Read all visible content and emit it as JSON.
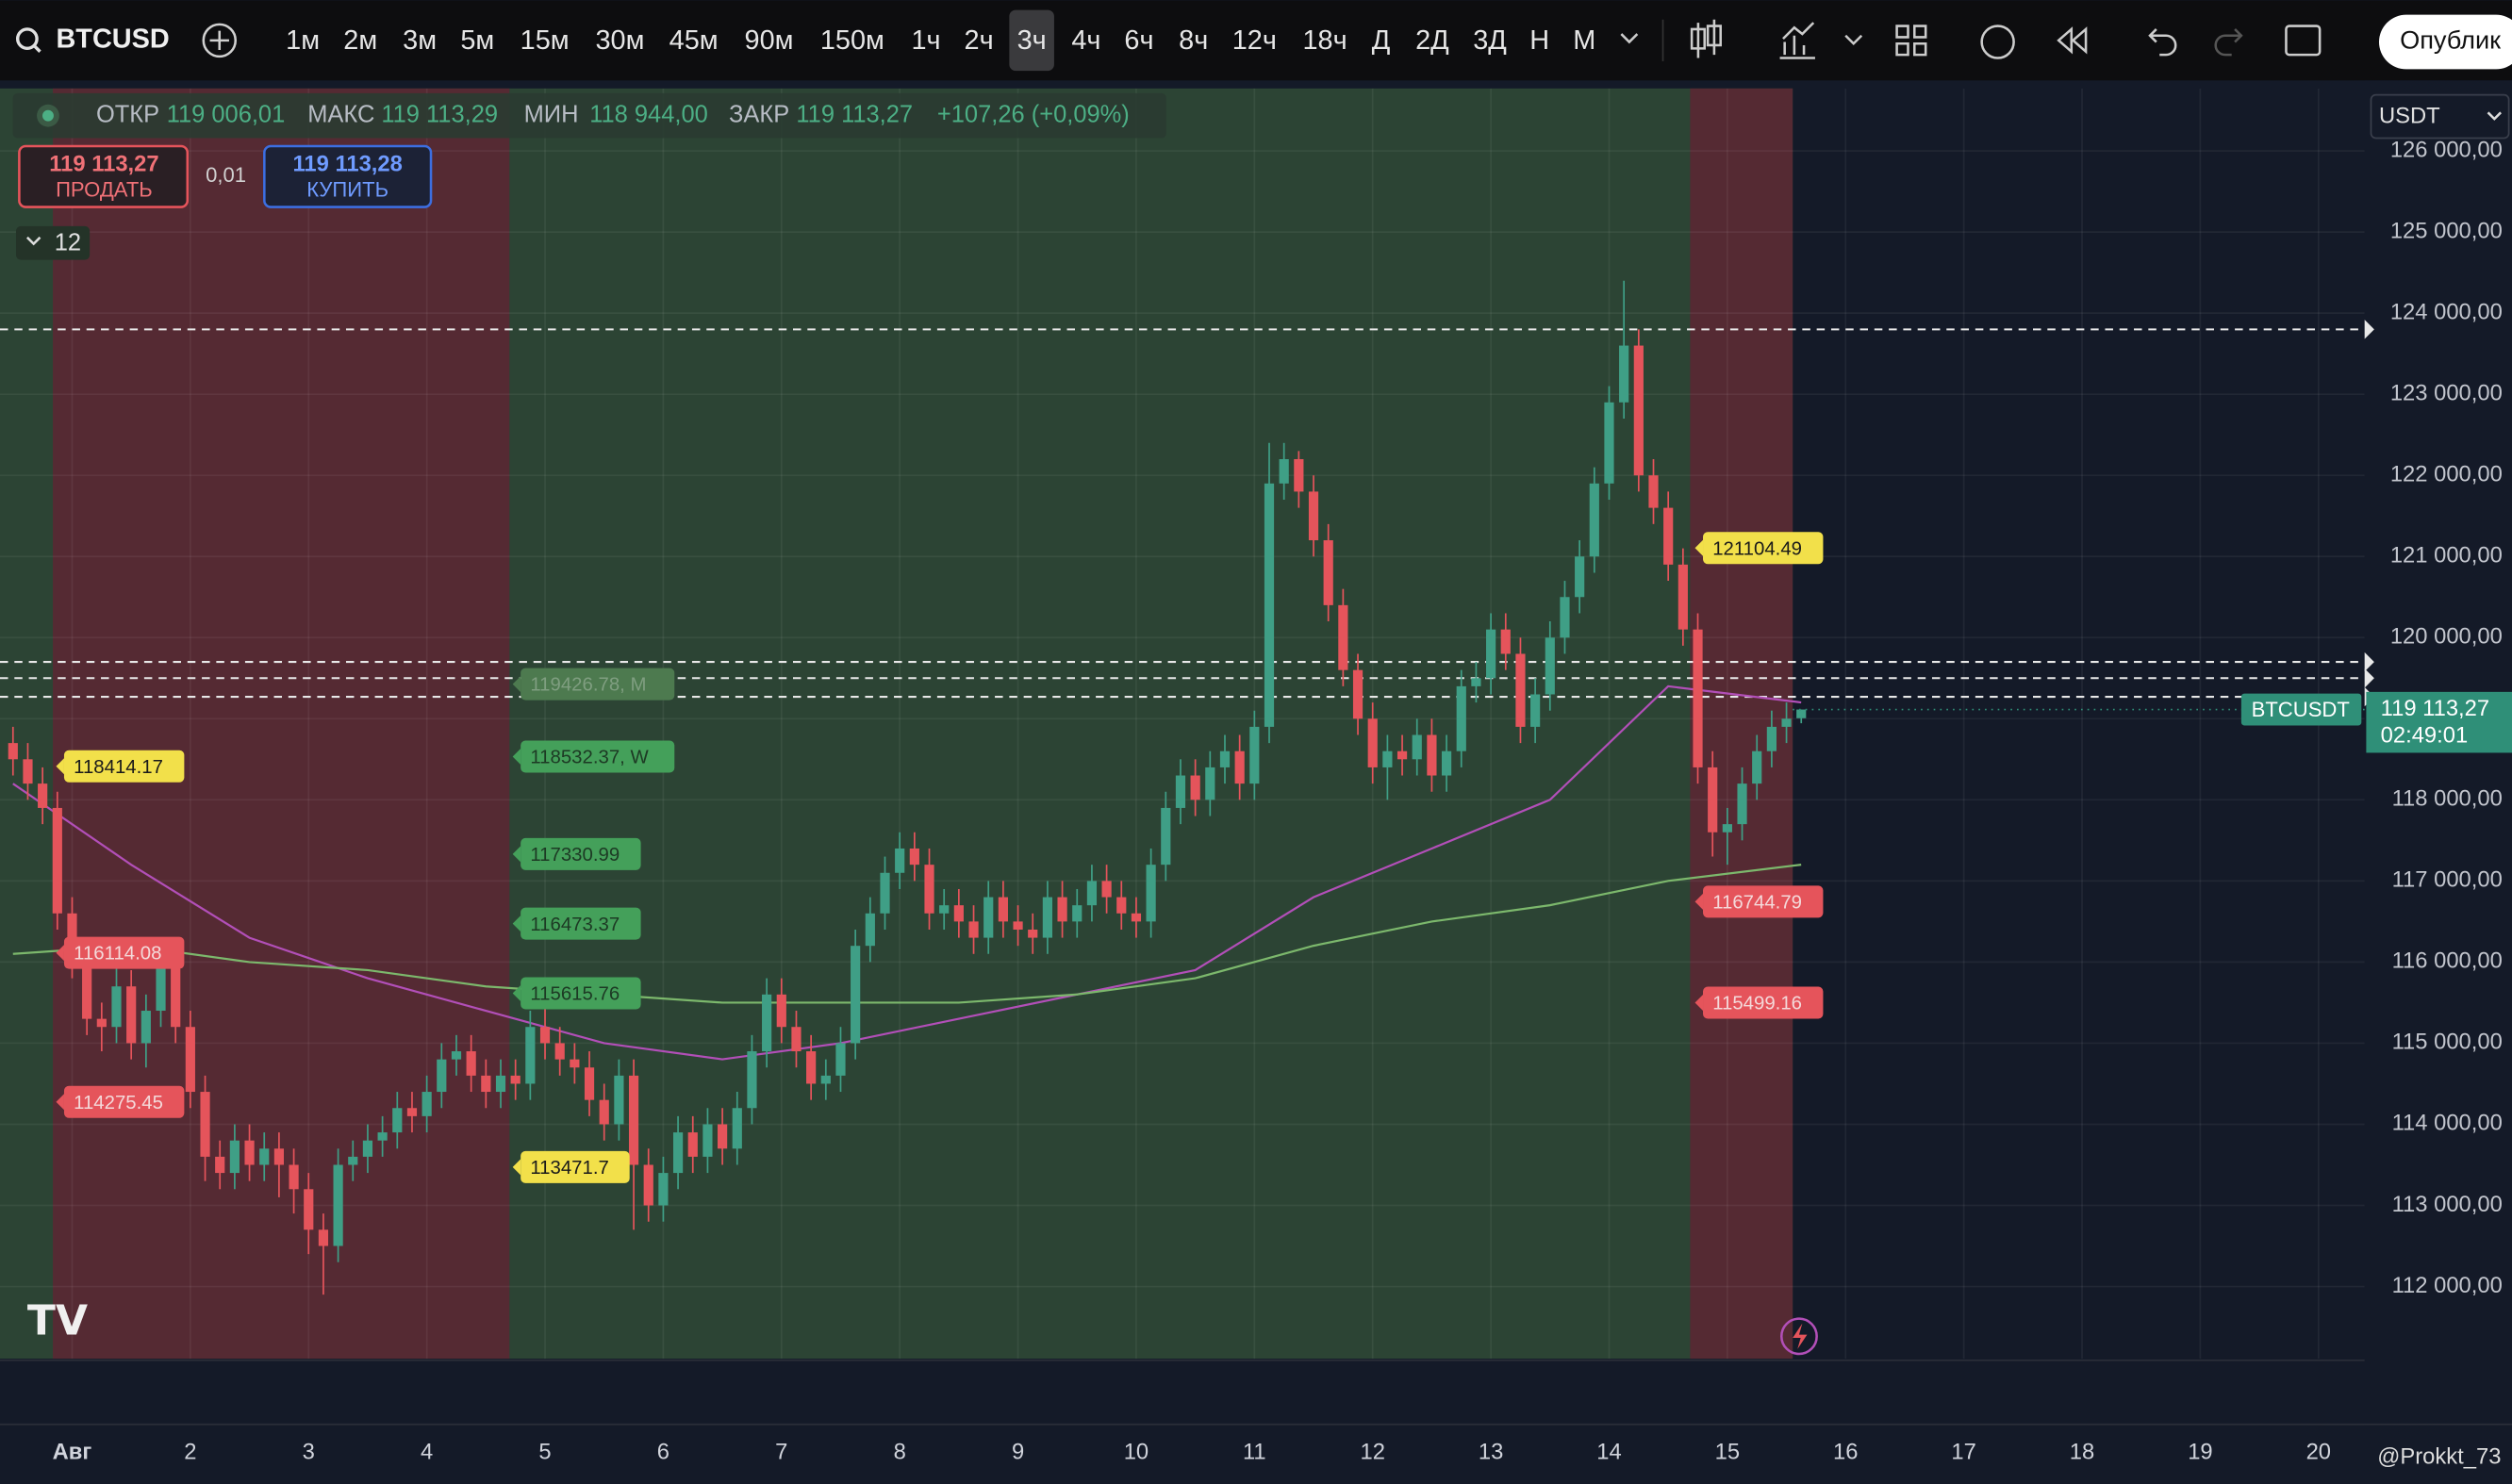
{
  "toolbar": {
    "symbol": "BTCUSD",
    "intervals": [
      "1м",
      "2м",
      "3м",
      "5м",
      "15м",
      "30м",
      "45м",
      "90м",
      "150м",
      "1ч",
      "2ч",
      "3ч",
      "4ч",
      "6ч",
      "8ч",
      "12ч",
      "18ч",
      "Д",
      "2Д",
      "3Д",
      "Н",
      "М"
    ],
    "active_interval": 11,
    "publish": "Опублик"
  },
  "legend": {
    "open_label": "ОТКР",
    "open": "119 006,01",
    "high_label": "МАКС",
    "high": "119 113,29",
    "low_label": "МИН",
    "low": "118 944,00",
    "close_label": "ЗАКР",
    "close": "119 113,27",
    "change": "+107,26 (+0,09%)"
  },
  "trade": {
    "sell_price": "119 113,27",
    "sell_label": "ПРОДАТЬ",
    "spread": "0,01",
    "buy_price": "119 113,28",
    "buy_label": "КУПИТЬ",
    "indicators": "12"
  },
  "currency": "USDT",
  "watermark": "@Prokkt_73",
  "chart_data": {
    "type": "candlestick",
    "up_color": "#3f9f86",
    "down_color": "#e5545b",
    "grid": true,
    "xlim": [
      0.39,
      20.39
    ],
    "xticks": [
      {
        "value": 1,
        "label": "Авг"
      },
      2,
      3,
      4,
      5,
      6,
      7,
      8,
      9,
      10,
      11,
      12,
      13,
      14,
      15,
      16,
      17,
      18,
      19,
      20
    ],
    "ylim": [
      111110,
      126770
    ],
    "yticks": [
      {
        "value": 126000,
        "label": "126 000,00"
      },
      {
        "value": 125000,
        "label": "125 000,00"
      },
      {
        "value": 124000,
        "label": "124 000,00"
      },
      {
        "value": 123000,
        "label": "123 000,00"
      },
      {
        "value": 122000,
        "label": "122 000,00"
      },
      {
        "value": 121000,
        "label": "121 000,00"
      },
      {
        "value": 120000,
        "label": "120 000,00"
      },
      {
        "value": 119000,
        "label": "119 000,00"
      },
      {
        "value": 118000,
        "label": "118 000,00"
      },
      {
        "value": 117000,
        "label": "117 000,00"
      },
      {
        "value": 116000,
        "label": "116 000,00"
      },
      {
        "value": 115000,
        "label": "115 000,00"
      },
      {
        "value": 114000,
        "label": "114 000,00"
      },
      {
        "value": 113000,
        "label": "113 000,00"
      },
      {
        "value": 112000,
        "label": "112 000,00"
      }
    ],
    "candles": [
      [
        0.5,
        118700,
        118900,
        118300,
        118500
      ],
      [
        0.625,
        118500,
        118700,
        118000,
        118200
      ],
      [
        0.75,
        118200,
        118400,
        117700,
        117900
      ],
      [
        0.875,
        117900,
        118100,
        116400,
        116600
      ],
      [
        1,
        116600,
        116800,
        115800,
        116000
      ],
      [
        1.125,
        116000,
        116200,
        115100,
        115300
      ],
      [
        1.25,
        115300,
        115500,
        114900,
        115200
      ],
      [
        1.375,
        115200,
        116000,
        115000,
        115700
      ],
      [
        1.5,
        115700,
        115900,
        114800,
        115000
      ],
      [
        1.625,
        115000,
        115600,
        114700,
        115400
      ],
      [
        1.75,
        115400,
        116300,
        115200,
        116000
      ],
      [
        1.875,
        116000,
        116200,
        115000,
        115200
      ],
      [
        2,
        115200,
        115400,
        114200,
        114400
      ],
      [
        2.125,
        114400,
        114600,
        113300,
        113600
      ],
      [
        2.25,
        113600,
        113800,
        113200,
        113400
      ],
      [
        2.375,
        113400,
        114000,
        113200,
        113800
      ],
      [
        2.5,
        113800,
        114000,
        113300,
        113500
      ],
      [
        2.625,
        113500,
        113900,
        113300,
        113700
      ],
      [
        2.75,
        113700,
        113900,
        113100,
        113500
      ],
      [
        2.875,
        113500,
        113700,
        112900,
        113200
      ],
      [
        3,
        113200,
        113400,
        112400,
        112700
      ],
      [
        3.125,
        112700,
        112900,
        111900,
        112500
      ],
      [
        3.25,
        112500,
        113700,
        112300,
        113500
      ],
      [
        3.375,
        113500,
        113800,
        113300,
        113600
      ],
      [
        3.5,
        113600,
        114000,
        113400,
        113800
      ],
      [
        3.625,
        113800,
        114100,
        113600,
        113900
      ],
      [
        3.75,
        113900,
        114400,
        113700,
        114200
      ],
      [
        3.875,
        114200,
        114400,
        113900,
        114100
      ],
      [
        4,
        114100,
        114600,
        113900,
        114400
      ],
      [
        4.125,
        114400,
        115000,
        114200,
        114800
      ],
      [
        4.25,
        114800,
        115100,
        114600,
        114900
      ],
      [
        4.375,
        114900,
        115100,
        114400,
        114600
      ],
      [
        4.5,
        114600,
        114800,
        114200,
        114400
      ],
      [
        4.625,
        114400,
        114800,
        114200,
        114600
      ],
      [
        4.75,
        114600,
        114800,
        114300,
        114500
      ],
      [
        4.875,
        114500,
        115400,
        114300,
        115200
      ],
      [
        5,
        115200,
        115500,
        114800,
        115000
      ],
      [
        5.125,
        115000,
        115200,
        114600,
        114800
      ],
      [
        5.25,
        114800,
        115000,
        114500,
        114700
      ],
      [
        5.375,
        114700,
        114900,
        114100,
        114300
      ],
      [
        5.5,
        114300,
        114500,
        113800,
        114000
      ],
      [
        5.625,
        114000,
        114800,
        113800,
        114600
      ],
      [
        5.75,
        114600,
        114800,
        112700,
        113500
      ],
      [
        5.875,
        113500,
        113700,
        112800,
        113000
      ],
      [
        6,
        113000,
        113600,
        112800,
        113400
      ],
      [
        6.125,
        113400,
        114100,
        113200,
        113900
      ],
      [
        6.25,
        113900,
        114100,
        113400,
        113600
      ],
      [
        6.375,
        113600,
        114200,
        113400,
        114000
      ],
      [
        6.5,
        114000,
        114200,
        113500,
        113700
      ],
      [
        6.625,
        113700,
        114400,
        113500,
        114200
      ],
      [
        6.75,
        114200,
        115100,
        114000,
        114900
      ],
      [
        6.875,
        114900,
        115800,
        114700,
        115600
      ],
      [
        7,
        115600,
        115800,
        115000,
        115200
      ],
      [
        7.125,
        115200,
        115400,
        114700,
        114900
      ],
      [
        7.25,
        114900,
        115100,
        114300,
        114500
      ],
      [
        7.375,
        114500,
        114800,
        114300,
        114600
      ],
      [
        7.5,
        114600,
        115200,
        114400,
        115000
      ],
      [
        7.625,
        115000,
        116400,
        114800,
        116200
      ],
      [
        7.75,
        116200,
        116800,
        116000,
        116600
      ],
      [
        7.875,
        116600,
        117300,
        116400,
        117100
      ],
      [
        8,
        117100,
        117600,
        116900,
        117400
      ],
      [
        8.125,
        117400,
        117600,
        117000,
        117200
      ],
      [
        8.25,
        117200,
        117400,
        116400,
        116600
      ],
      [
        8.375,
        116600,
        116900,
        116400,
        116700
      ],
      [
        8.5,
        116700,
        116900,
        116300,
        116500
      ],
      [
        8.625,
        116500,
        116700,
        116100,
        116300
      ],
      [
        8.75,
        116300,
        117000,
        116100,
        116800
      ],
      [
        8.875,
        116800,
        117000,
        116300,
        116500
      ],
      [
        9,
        116500,
        116700,
        116200,
        116400
      ],
      [
        9.125,
        116400,
        116600,
        116100,
        116300
      ],
      [
        9.25,
        116300,
        117000,
        116100,
        116800
      ],
      [
        9.375,
        116800,
        117000,
        116300,
        116500
      ],
      [
        9.5,
        116500,
        116900,
        116300,
        116700
      ],
      [
        9.625,
        116700,
        117200,
        116500,
        117000
      ],
      [
        9.75,
        117000,
        117200,
        116600,
        116800
      ],
      [
        9.875,
        116800,
        117000,
        116400,
        116600
      ],
      [
        10,
        116600,
        116800,
        116300,
        116500
      ],
      [
        10.125,
        116500,
        117400,
        116300,
        117200
      ],
      [
        10.25,
        117200,
        118100,
        117000,
        117900
      ],
      [
        10.375,
        117900,
        118500,
        117700,
        118300
      ],
      [
        10.5,
        118300,
        118500,
        117800,
        118000
      ],
      [
        10.625,
        118000,
        118600,
        117800,
        118400
      ],
      [
        10.75,
        118400,
        118800,
        118200,
        118600
      ],
      [
        10.875,
        118600,
        118800,
        118000,
        118200
      ],
      [
        11,
        118200,
        119100,
        118000,
        118900
      ],
      [
        11.125,
        118900,
        122400,
        118700,
        121900
      ],
      [
        11.25,
        121900,
        122400,
        121700,
        122200
      ],
      [
        11.375,
        122200,
        122300,
        121600,
        121800
      ],
      [
        11.5,
        121800,
        122000,
        121000,
        121200
      ],
      [
        11.625,
        121200,
        121400,
        120200,
        120400
      ],
      [
        11.75,
        120400,
        120600,
        119400,
        119600
      ],
      [
        11.875,
        119600,
        119800,
        118800,
        119000
      ],
      [
        12,
        119000,
        119200,
        118200,
        118400
      ],
      [
        12.125,
        118400,
        118800,
        118000,
        118600
      ],
      [
        12.25,
        118600,
        118800,
        118300,
        118500
      ],
      [
        12.375,
        118500,
        119000,
        118300,
        118800
      ],
      [
        12.5,
        118800,
        119000,
        118100,
        118300
      ],
      [
        12.625,
        118300,
        118800,
        118100,
        118600
      ],
      [
        12.75,
        118600,
        119600,
        118400,
        119400
      ],
      [
        12.875,
        119400,
        119700,
        119200,
        119500
      ],
      [
        13,
        119500,
        120300,
        119300,
        120100
      ],
      [
        13.125,
        120100,
        120300,
        119600,
        119800
      ],
      [
        13.25,
        119800,
        120000,
        118700,
        118900
      ],
      [
        13.375,
        118900,
        119500,
        118700,
        119300
      ],
      [
        13.5,
        119300,
        120200,
        119100,
        120000
      ],
      [
        13.625,
        120000,
        120700,
        119800,
        120500
      ],
      [
        13.75,
        120500,
        121200,
        120300,
        121000
      ],
      [
        13.875,
        121000,
        122100,
        120800,
        121900
      ],
      [
        14,
        121900,
        123100,
        121700,
        122900
      ],
      [
        14.125,
        122900,
        124400,
        122700,
        123600
      ],
      [
        14.25,
        123600,
        123800,
        121800,
        122000
      ],
      [
        14.375,
        122000,
        122200,
        121400,
        121600
      ],
      [
        14.5,
        121600,
        121800,
        120700,
        120900
      ],
      [
        14.625,
        120900,
        121100,
        119900,
        120100
      ],
      [
        14.75,
        120100,
        120300,
        118200,
        118400
      ],
      [
        14.875,
        118400,
        118600,
        117300,
        117600
      ],
      [
        15,
        117600,
        117900,
        117200,
        117700
      ],
      [
        15.125,
        117700,
        118400,
        117500,
        118200
      ],
      [
        15.25,
        118200,
        118800,
        118000,
        118600
      ],
      [
        15.375,
        118600,
        119100,
        118400,
        118900
      ],
      [
        15.5,
        118900,
        119200,
        118700,
        119000
      ],
      [
        15.625,
        119006.01,
        119113.29,
        118944,
        119113.27
      ]
    ],
    "ma_lines": [
      {
        "color": "#b24fb8",
        "x": [
          0.5,
          1.5,
          2.5,
          3.5,
          4.5,
          5.5,
          6.5,
          7.5,
          8.5,
          9.5,
          10.5,
          11.5,
          12.5,
          13.5,
          14.5,
          15.625
        ],
        "values": [
          118200,
          117200,
          116300,
          115800,
          115400,
          115000,
          114800,
          115000,
          115300,
          115600,
          115900,
          116800,
          117400,
          118000,
          119400,
          119200
        ]
      },
      {
        "color": "#7cb86c",
        "x": [
          0.5,
          1.5,
          2.5,
          3.5,
          4.5,
          5.5,
          6.5,
          7.5,
          8.5,
          9.5,
          10.5,
          11.5,
          12.5,
          13.5,
          14.5,
          15.625
        ],
        "values": [
          116100,
          116200,
          116000,
          115900,
          115700,
          115600,
          115500,
          115500,
          115500,
          115600,
          115800,
          116200,
          116500,
          116700,
          117000,
          117200
        ]
      }
    ],
    "price_lines": [
      123800,
      119700,
      119500,
      119270
    ],
    "annotations": [
      {
        "value": 118414.17,
        "label": "118414.17",
        "color": "#f2e04a",
        "text_color": "#1a1a1a"
      },
      {
        "value": 116114.08,
        "label": "116114.08",
        "color": "#e5545b",
        "text_color": "#f4d9da"
      },
      {
        "value": 114275.45,
        "label": "114275.45",
        "color": "#e5545b",
        "text_color": "#f4d9da"
      },
      {
        "value": 113471.7,
        "label": "113471.7",
        "color": "#f2e04a",
        "text_color": "#1a1a1a"
      },
      {
        "value": 119426.78,
        "label": "119426.78, M",
        "color": "#4d7a4f",
        "text_color": "#7f9e80"
      },
      {
        "value": 118532.37,
        "label": "118532.37, W",
        "color": "#44a05a",
        "text_color": "#1d3a24"
      },
      {
        "value": 117330.99,
        "label": "117330.99",
        "color": "#44a05a",
        "text_color": "#1d3a24"
      },
      {
        "value": 116473.37,
        "label": "116473.37",
        "color": "#44a05a",
        "text_color": "#1d3a24"
      },
      {
        "value": 115615.76,
        "label": "115615.76",
        "color": "#44a05a",
        "text_color": "#1d3a24"
      },
      {
        "value": 121104.49,
        "label": "121104.49",
        "color": "#f2e04a",
        "text_color": "#1a1a1a"
      },
      {
        "value": 116744.79,
        "label": "116744.79",
        "color": "#e5545b",
        "text_color": "#f4d9da"
      },
      {
        "value": 115499.16,
        "label": "115499.16",
        "color": "#e5545b",
        "text_color": "#f4d9da"
      }
    ],
    "last_price": {
      "symbol": "BTCUSDT",
      "value": 119113.27,
      "label": "119 113,27",
      "countdown": "02:49:01",
      "color": "#2f8f78"
    }
  }
}
